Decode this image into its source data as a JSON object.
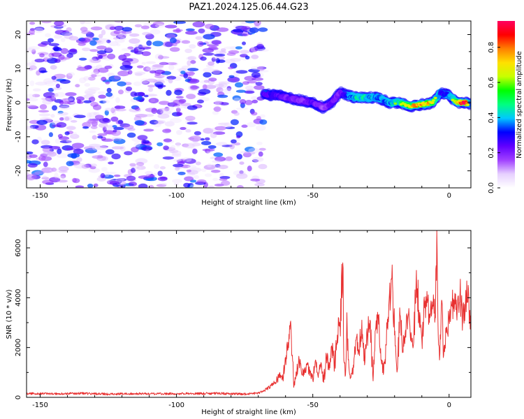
{
  "figure": {
    "title": "PAZ1.2024.125.06.44.G23"
  },
  "chart_data": [
    {
      "type": "heatmap",
      "xlabel": "Height of straight line (km)",
      "ylabel": "Frequency (Hz)",
      "xlim": [
        -155,
        8
      ],
      "ylim": [
        -25,
        24
      ],
      "xticks": [
        -150,
        -100,
        -50,
        0
      ],
      "yticks": [
        -20,
        -10,
        0,
        10,
        20
      ],
      "colorbar": {
        "label": "Normalized spectral amplitude",
        "range": [
          0,
          0.95
        ],
        "ticks": [
          0.0,
          0.2,
          0.4,
          0.6,
          0.8
        ],
        "colormap": [
          "#ffffff",
          "#e6d0ff",
          "#a040ff",
          "#6000ff",
          "#0000ff",
          "#00c8ff",
          "#00ff80",
          "#00ff00",
          "#c8ff00",
          "#ffe000",
          "#ff8000",
          "#ff0000",
          "#ff0060"
        ]
      },
      "noise_region": {
        "x_range": [
          -155,
          -68
        ],
        "amplitude_range": [
          0.05,
          0.4
        ]
      },
      "signal_ridge": {
        "x": [
          -68,
          -62,
          -57,
          -53,
          -50,
          -46,
          -43,
          -40,
          -37,
          -34,
          -30,
          -26,
          -22,
          -18,
          -14,
          -10,
          -6,
          -3,
          0,
          3,
          6,
          8
        ],
        "frequency": [
          2.5,
          2,
          1,
          0.5,
          0,
          -1.5,
          0,
          3,
          2,
          1.5,
          1.5,
          1.5,
          0,
          0,
          -1,
          -0.5,
          0,
          3,
          2,
          0,
          0,
          -0.5
        ],
        "amplitude": [
          0.35,
          0.3,
          0.25,
          0.25,
          0.3,
          0.2,
          0.3,
          0.25,
          0.45,
          0.55,
          0.55,
          0.45,
          0.5,
          0.6,
          0.7,
          0.8,
          0.75,
          0.35,
          0.45,
          0.8,
          0.95,
          0.4
        ]
      }
    },
    {
      "type": "line",
      "xlabel": "Height of straight line (km)",
      "ylabel": "SNR (10 * v/v)",
      "xlim": [
        -155,
        8
      ],
      "ylim": [
        0,
        6700
      ],
      "xticks": [
        -150,
        -100,
        -50,
        0
      ],
      "yticks": [
        0,
        2000,
        4000,
        6000
      ],
      "color": "#e83030",
      "series": [
        {
          "x": [
            -155,
            -145,
            -135,
            -125,
            -115,
            -105,
            -95,
            -85,
            -75,
            -70,
            -68,
            -66,
            -64,
            -62,
            -61,
            -60,
            -59,
            -58,
            -57,
            -56,
            -55,
            -54,
            -52,
            -50,
            -49,
            -48,
            -47,
            -46,
            -45,
            -44,
            -43,
            -42,
            -41,
            -40,
            -39,
            -38.5,
            -38,
            -37.5,
            -37,
            -36,
            -35,
            -34,
            -33,
            -32,
            -31,
            -30,
            -29,
            -28,
            -27,
            -26,
            -25,
            -24,
            -23,
            -22,
            -21,
            -20,
            -19,
            -18,
            -17,
            -16,
            -15,
            -14,
            -13,
            -12,
            -11,
            -10,
            -9,
            -8,
            -7,
            -6,
            -5,
            -4.5,
            -4,
            -3.5,
            -3,
            -2.5,
            -2,
            -1,
            0,
            1,
            2,
            3,
            4,
            5,
            6,
            7,
            7.5,
            8
          ],
          "y": [
            150,
            140,
            160,
            130,
            150,
            140,
            150,
            160,
            130,
            170,
            250,
            400,
            600,
            900,
            800,
            1600,
            2200,
            2800,
            400,
            1000,
            1500,
            900,
            1300,
            700,
            1500,
            800,
            1400,
            600,
            1700,
            1100,
            2000,
            1300,
            2500,
            3000,
            5400,
            1400,
            900,
            3400,
            1500,
            800,
            1200,
            2400,
            1800,
            3100,
            1300,
            2500,
            3100,
            900,
            2700,
            3300,
            1500,
            1000,
            2100,
            3900,
            4800,
            2500,
            1100,
            3300,
            1900,
            2700,
            3300,
            2600,
            2200,
            5100,
            3100,
            2300,
            3600,
            3800,
            3200,
            3700,
            3200,
            6700,
            2500,
            1500,
            2900,
            3700,
            1700,
            2600,
            3100,
            3700,
            3800,
            3600,
            4200,
            3300,
            3800,
            4500,
            3400,
            3000
          ]
        }
      ]
    }
  ]
}
